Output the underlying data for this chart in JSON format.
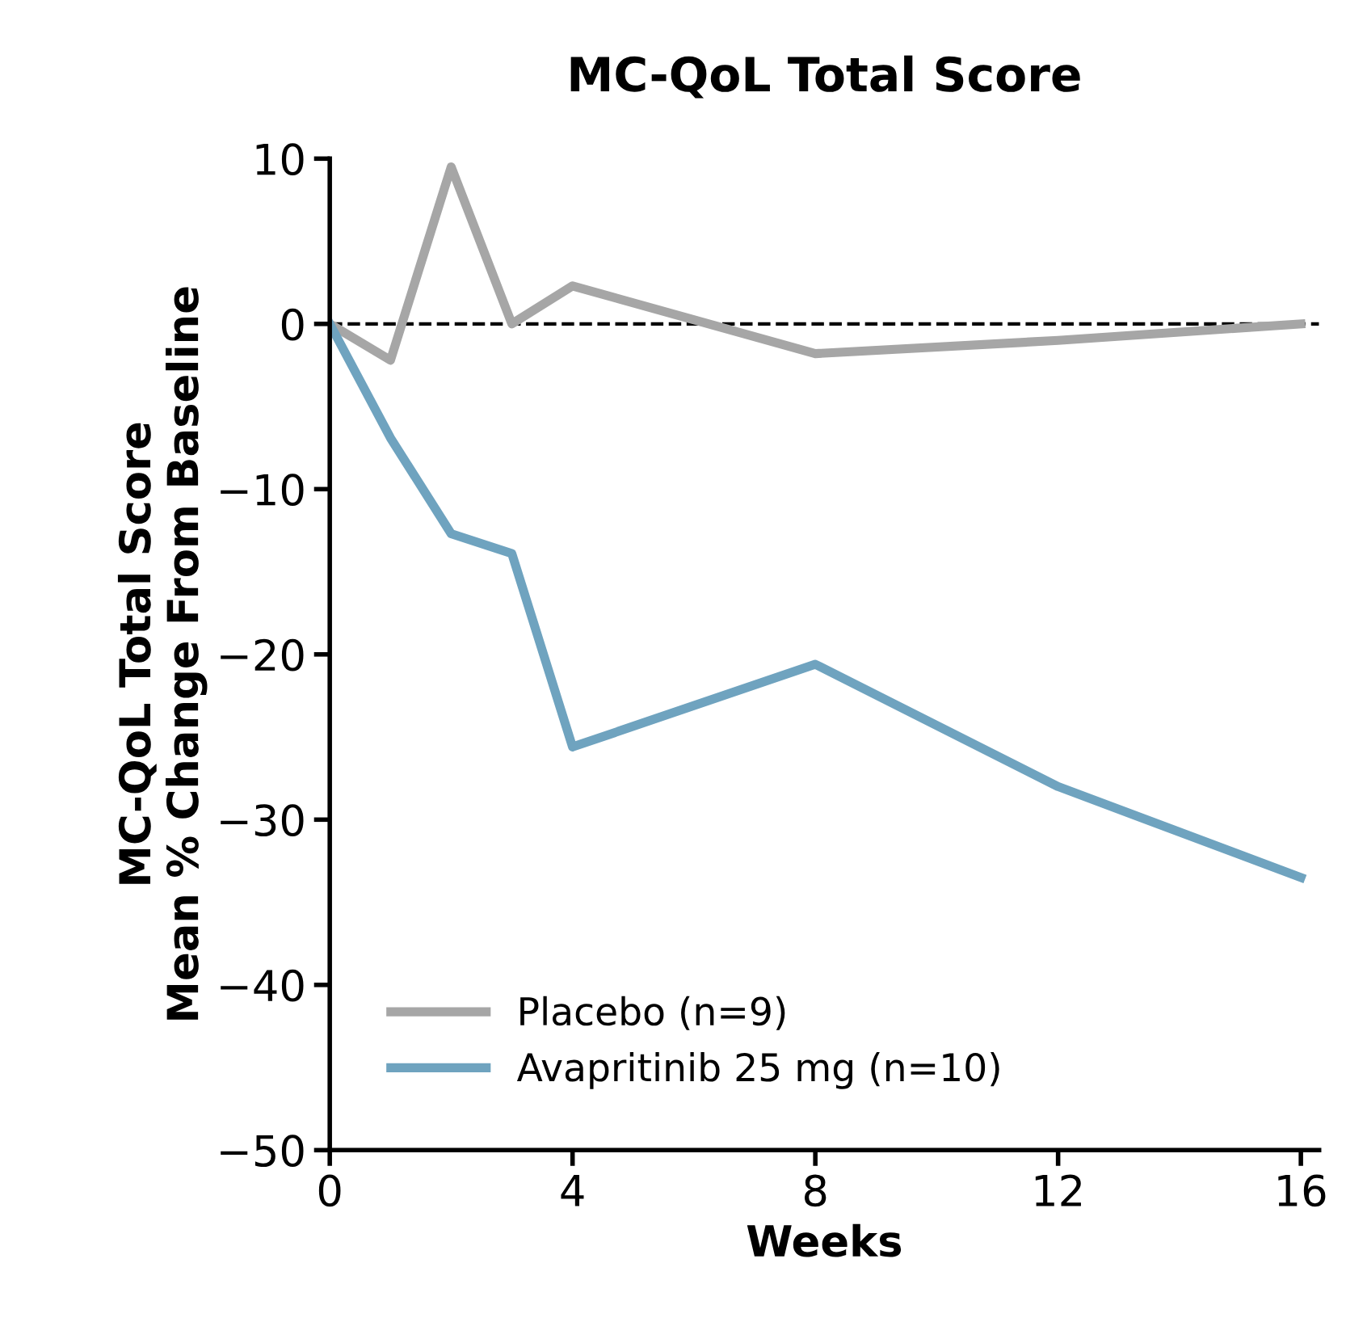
{
  "chart_data": {
    "type": "line",
    "title": "MC-QoL Total Score",
    "xlabel": "Weeks",
    "ylabel": "MC-QoL Total Score\nMean % Change From Baseline",
    "x": [
      0,
      1,
      2,
      3,
      4,
      8,
      12,
      16
    ],
    "series": [
      {
        "name": "Placebo (n=9)",
        "color": "#a6a6a6",
        "values": [
          0,
          -2.2,
          9.5,
          0,
          2.3,
          -1.8,
          -1.0,
          0
        ]
      },
      {
        "name": "Avapritinib 25 mg (n=10)",
        "color": "#6fa3bf",
        "values": [
          0,
          -6.9,
          -12.7,
          -13.9,
          -25.6,
          -20.6,
          -28.0,
          -33.5
        ]
      }
    ],
    "xlim": [
      0,
      16.3
    ],
    "xticks": [
      0,
      4,
      8,
      12,
      16
    ],
    "ylim": [
      -50,
      10
    ],
    "yticks": [
      {
        "value": -50,
        "label": "−50"
      },
      {
        "value": -40,
        "label": "−40"
      },
      {
        "value": -30,
        "label": "−30"
      },
      {
        "value": -20,
        "label": "−20"
      },
      {
        "value": -10,
        "label": "−10"
      },
      0,
      10
    ],
    "ref_lines": [
      {
        "axis": "y",
        "value": 0,
        "color": "#000000",
        "line_style": "dashed"
      }
    ],
    "legend": "bottom left",
    "grid": false,
    "marker": "none",
    "line_style": "solid"
  }
}
